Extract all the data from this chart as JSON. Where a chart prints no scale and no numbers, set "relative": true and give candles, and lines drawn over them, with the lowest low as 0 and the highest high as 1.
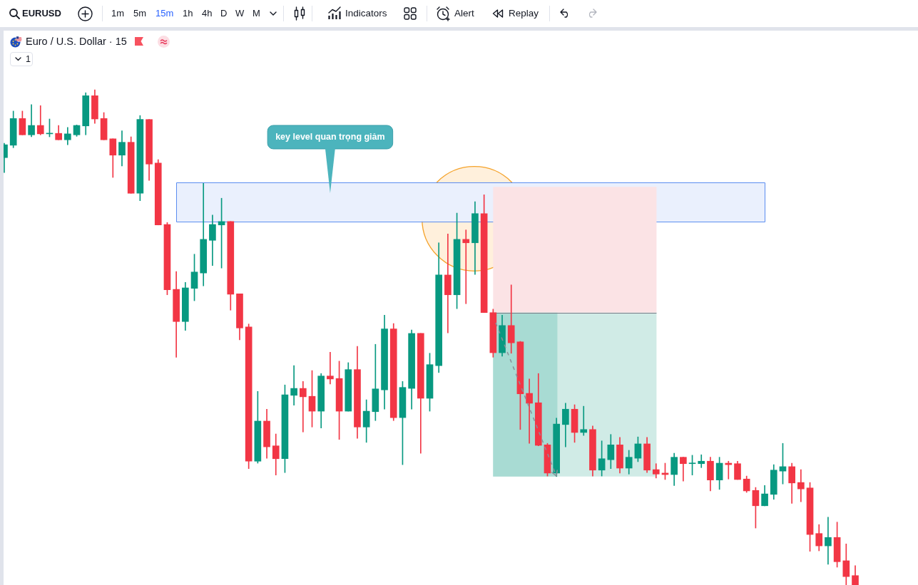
{
  "chart_data": {
    "type": "candlestick",
    "title": "Euro / U.S. Dollar · 15",
    "relative": true,
    "categories": [
      null,
      null,
      null,
      null,
      null,
      null,
      null,
      null,
      null,
      null,
      null,
      null,
      null,
      null,
      null,
      null,
      null,
      null,
      null,
      null,
      null,
      null,
      null,
      null,
      null,
      null,
      null,
      null,
      null,
      null,
      null,
      null,
      null,
      null,
      null,
      null,
      null,
      null,
      null,
      null,
      null,
      null,
      null,
      null,
      null,
      null,
      null,
      null,
      null,
      null,
      null,
      null,
      null,
      null,
      null,
      null,
      null,
      null,
      null,
      null,
      null,
      null,
      null,
      null,
      null,
      null,
      null,
      null,
      null,
      null,
      null,
      null,
      null,
      null,
      null,
      null,
      null,
      null,
      null,
      null,
      null,
      null,
      null,
      null,
      null,
      null,
      null,
      null,
      null,
      null,
      null,
      null,
      null,
      null,
      null
    ],
    "ohlc": [
      [
        0.863,
        0.892,
        0.833,
        0.889
      ],
      [
        0.888,
        0.957,
        0.883,
        0.942
      ],
      [
        0.942,
        0.957,
        0.909,
        0.909
      ],
      [
        0.909,
        0.97,
        0.905,
        0.928
      ],
      [
        0.928,
        0.968,
        0.909,
        0.911
      ],
      [
        0.911,
        0.941,
        0.905,
        0.912
      ],
      [
        0.912,
        0.928,
        0.899,
        0.899
      ],
      [
        0.899,
        0.924,
        0.889,
        0.911
      ],
      [
        0.909,
        0.929,
        0.906,
        0.928
      ],
      [
        0.927,
        0.994,
        0.909,
        0.988
      ],
      [
        0.988,
        1,
        0.932,
        0.941
      ],
      [
        0.942,
        0.954,
        0.899,
        0.899
      ],
      [
        0.901,
        0.901,
        0.823,
        0.868
      ],
      [
        0.868,
        0.917,
        0.846,
        0.894
      ],
      [
        0.894,
        0.905,
        0.791,
        0.791
      ],
      [
        0.791,
        0.948,
        0.776,
        0.94
      ],
      [
        0.94,
        0.94,
        0.817,
        0.85
      ],
      [
        0.852,
        0.859,
        0.727,
        0.727
      ],
      [
        0.728,
        0.732,
        0.586,
        0.596
      ],
      [
        0.597,
        0.633,
        0.46,
        0.532
      ],
      [
        0.532,
        0.611,
        0.514,
        0.6
      ],
      [
        0.599,
        0.668,
        0.574,
        0.632
      ],
      [
        0.63,
        0.811,
        0.604,
        0.698
      ],
      [
        0.696,
        0.747,
        0.645,
        0.728
      ],
      [
        0.727,
        0.781,
        0.64,
        0.734
      ],
      [
        0.734,
        0.734,
        0.555,
        0.587
      ],
      [
        0.588,
        0.588,
        0.495,
        0.519
      ],
      [
        0.521,
        0.527,
        0.235,
        0.25
      ],
      [
        0.25,
        0.391,
        0.246,
        0.331
      ],
      [
        0.331,
        0.355,
        0.256,
        0.279
      ],
      [
        0.281,
        0.305,
        0.222,
        0.255
      ],
      [
        0.255,
        0.404,
        0.227,
        0.384
      ],
      [
        0.383,
        0.443,
        0.363,
        0.397
      ],
      [
        0.397,
        0.411,
        0.309,
        0.38
      ],
      [
        0.381,
        0.433,
        0.319,
        0.351
      ],
      [
        0.351,
        0.427,
        0.317,
        0.422
      ],
      [
        0.422,
        0.47,
        0.406,
        0.416
      ],
      [
        0.417,
        0.452,
        0.294,
        0.351
      ],
      [
        0.351,
        0.449,
        0.351,
        0.435
      ],
      [
        0.435,
        0.482,
        0.296,
        0.319
      ],
      [
        0.319,
        0.374,
        0.288,
        0.351
      ],
      [
        0.35,
        0.486,
        0.332,
        0.396
      ],
      [
        0.394,
        0.545,
        0.355,
        0.517
      ],
      [
        0.517,
        0.528,
        0.332,
        0.338
      ],
      [
        0.338,
        0.411,
        0.243,
        0.399
      ],
      [
        0.397,
        0.515,
        0.355,
        0.508
      ],
      [
        0.508,
        0.508,
        0.266,
        0.377
      ],
      [
        0.377,
        0.468,
        0.351,
        0.445
      ],
      [
        0.443,
        0.691,
        0.429,
        0.626
      ],
      [
        0.626,
        0.709,
        0.509,
        0.586
      ],
      [
        0.586,
        0.751,
        0.558,
        0.698
      ],
      [
        0.698,
        0.717,
        0.568,
        0.691
      ],
      [
        0.691,
        0.774,
        0.627,
        0.75
      ],
      [
        0.75,
        0.788,
        0.55,
        0.55
      ],
      [
        0.55,
        0.557,
        0.46,
        0.469
      ],
      [
        0.469,
        0.545,
        0.462,
        0.524
      ],
      [
        0.524,
        0.606,
        0.468,
        0.489
      ],
      [
        0.491,
        0.492,
        0.314,
        0.386
      ],
      [
        0.387,
        0.416,
        0.286,
        0.367
      ],
      [
        0.368,
        0.427,
        0.281,
        0.282
      ],
      [
        0.283,
        0.286,
        0.22,
        0.226
      ],
      [
        0.226,
        0.337,
        0.219,
        0.325
      ],
      [
        0.324,
        0.367,
        0.279,
        0.355
      ],
      [
        0.355,
        0.364,
        0.288,
        0.308
      ],
      [
        0.308,
        0.361,
        0.302,
        0.314
      ],
      [
        0.314,
        0.321,
        0.22,
        0.232
      ],
      [
        0.232,
        0.291,
        0.22,
        0.255
      ],
      [
        0.253,
        0.304,
        0.235,
        0.283
      ],
      [
        0.283,
        0.298,
        0.226,
        0.236
      ],
      [
        0.236,
        0.272,
        0.224,
        0.258
      ],
      [
        0.256,
        0.299,
        0.249,
        0.285
      ],
      [
        0.285,
        0.298,
        0.227,
        0.232
      ],
      [
        0.233,
        0.245,
        0.216,
        0.224
      ],
      [
        0.226,
        0.246,
        0.213,
        0.223
      ],
      [
        0.223,
        0.266,
        0.201,
        0.258
      ],
      [
        0.258,
        0.258,
        0.21,
        0.245
      ],
      [
        0.245,
        0.262,
        0.222,
        0.246
      ],
      [
        0.245,
        0.263,
        0.237,
        0.25
      ],
      [
        0.25,
        0.258,
        0.19,
        0.212
      ],
      [
        0.212,
        0.258,
        0.193,
        0.246
      ],
      [
        0.246,
        0.25,
        0.214,
        0.243
      ],
      [
        0.245,
        0.25,
        0.213,
        0.213
      ],
      [
        0.214,
        0.22,
        0.187,
        0.19
      ],
      [
        0.191,
        0.197,
        0.115,
        0.16
      ],
      [
        0.16,
        0.201,
        0.16,
        0.184
      ],
      [
        0.183,
        0.243,
        0.173,
        0.232
      ],
      [
        0.23,
        0.286,
        0.204,
        0.239
      ],
      [
        0.239,
        0.246,
        0.165,
        0.206
      ],
      [
        0.207,
        0.233,
        0.168,
        0.194
      ],
      [
        0.196,
        0.207,
        0.068,
        0.102
      ],
      [
        0.104,
        0.122,
        0.069,
        0.079
      ],
      [
        0.079,
        0.137,
        0.042,
        0.096
      ],
      [
        0.096,
        0.127,
        0.036,
        0.047
      ],
      [
        0.049,
        0.083,
        0,
        0.017
      ],
      [
        0.019,
        0.039,
        0,
        0
      ]
    ],
    "colors": [
      "#089981",
      "#089981",
      "#f23645",
      "#089981",
      "#f23645",
      "#089981",
      "#f23645",
      "#089981",
      "#089981",
      "#089981",
      "#f23645",
      "#f23645",
      "#f23645",
      "#089981",
      "#f23645",
      "#089981",
      "#f23645",
      "#f23645",
      "#f23645",
      "#f23645",
      "#089981",
      "#089981",
      "#089981",
      "#089981",
      "#089981",
      "#f23645",
      "#f23645",
      "#f23645",
      "#089981",
      "#f23645",
      "#f23645",
      "#089981",
      "#089981",
      "#f23645",
      "#f23645",
      "#089981",
      "#f23645",
      "#f23645",
      "#089981",
      "#f23645",
      "#089981",
      "#089981",
      "#089981",
      "#f23645",
      "#089981",
      "#089981",
      "#f23645",
      "#089981",
      "#089981",
      "#f23645",
      "#089981",
      "#f23645",
      "#089981",
      "#f23645",
      "#f23645",
      "#089981",
      "#f23645",
      "#f23645",
      "#f23645",
      "#f23645",
      "#f23645",
      "#089981",
      "#089981",
      "#f23645",
      "#089981",
      "#f23645",
      "#089981",
      "#089981",
      "#f23645",
      "#089981",
      "#089981",
      "#f23645",
      "#f23645",
      "#f23645",
      "#089981",
      "#f23645",
      "#089981",
      "#089981",
      "#f23645",
      "#089981",
      "#f23645",
      "#f23645",
      "#f23645",
      "#f23645",
      "#089981",
      "#089981",
      "#089981",
      "#f23645",
      "#f23645",
      "#f23645",
      "#f23645",
      "#089981",
      "#f23645",
      "#f23645",
      "#f23645"
    ],
    "bands": [
      {
        "axis": "y",
        "from": 0.734,
        "to": 0.813,
        "label": "key level quan trọng giảm",
        "color": "#eaf0fd"
      },
      {
        "axis": "y",
        "from": 0.55,
        "to": 0.804,
        "color": "#fbe3e5"
      },
      {
        "axis": "y",
        "from": 0.219,
        "to": 0.55,
        "color": "#d0ebe6"
      },
      {
        "axis": "y",
        "from": 0.219,
        "to": 0.55,
        "color": "#a8dbd3"
      }
    ],
    "ref_lines": [
      {
        "axis": "y",
        "value": 0.55,
        "color": "#787b86"
      }
    ],
    "annotations": [
      "EURUSD",
      "1m",
      "5m",
      "15m",
      "1h",
      "4h",
      "D",
      "W",
      "M",
      "Indicators",
      "Alert",
      "Replay",
      "1"
    ]
  }
}
